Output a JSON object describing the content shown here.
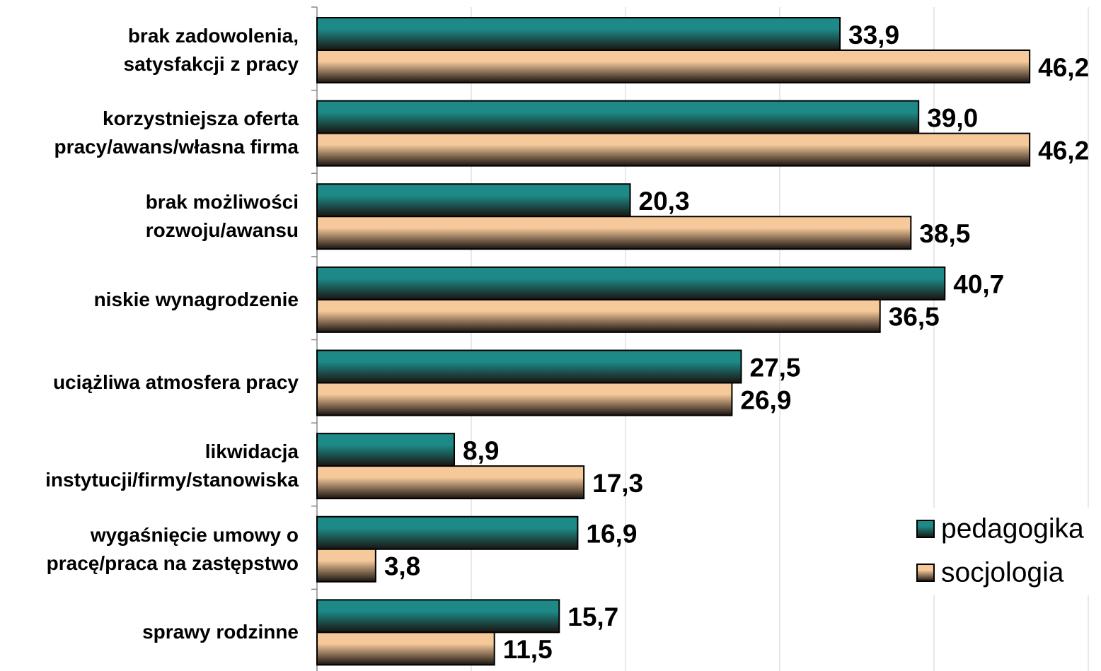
{
  "chart_data": {
    "type": "bar",
    "orientation": "horizontal",
    "categories": [
      "brak zadowolenia,\nsatysfakcji z pracy",
      "korzystniejsza oferta\npracy/awans/własna firma",
      "brak możliwości\nrozwoju/awansu",
      "niskie wynagrodzenie",
      "uciążliwa atmosfera pracy",
      "likwidacja\ninstytucji/firmy/stanowiska",
      "wygaśnięcie umowy o\npracę/praca na zastępstwo",
      "sprawy rodzinne"
    ],
    "series": [
      {
        "name": "pedagogika",
        "color": "#1d8a87",
        "values": [
          33.9,
          39.0,
          20.3,
          40.7,
          27.5,
          8.9,
          16.9,
          15.7
        ],
        "value_labels": [
          "33,9",
          "39,0",
          "20,3",
          "40,7",
          "27,5",
          "8,9",
          "16,9",
          "15,7"
        ]
      },
      {
        "name": "socjologia",
        "color": "#f6c99a",
        "values": [
          46.2,
          46.2,
          38.5,
          36.5,
          26.9,
          17.3,
          3.8,
          11.5
        ],
        "value_labels": [
          "46,2",
          "46,2",
          "38,5",
          "36,5",
          "26,9",
          "17,3",
          "3,8",
          "11,5"
        ]
      }
    ],
    "xlim": [
      0,
      50
    ],
    "xticks": [
      0,
      10,
      20,
      30,
      40,
      50
    ],
    "grid": true,
    "legend": "lower right"
  }
}
